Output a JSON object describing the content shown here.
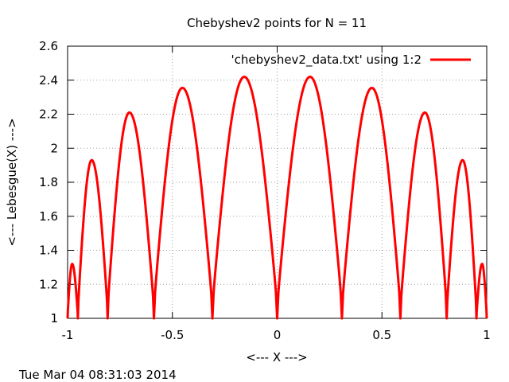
{
  "chart_data": {
    "type": "line",
    "title": "Chebyshev2 points for N = 11",
    "xlabel": "<--- X --->",
    "ylabel": "<--- Lebesgue(X) --->",
    "xlim": [
      -1,
      1
    ],
    "ylim": [
      1,
      2.6
    ],
    "xticks": [
      -1,
      -0.5,
      0,
      0.5,
      1
    ],
    "xtick_labels": [
      "-1",
      "-0.5",
      "0",
      "0.5",
      "1"
    ],
    "yticks": [
      1,
      1.2,
      1.4,
      1.6,
      1.8,
      2,
      2.2,
      2.4,
      2.6
    ],
    "ytick_labels": [
      "1",
      "1.2",
      "1.4",
      "1.6",
      "1.8",
      "2",
      "2.2",
      "2.4",
      "2.6"
    ],
    "grid": true,
    "legend_position": "top-right",
    "series": [
      {
        "name": "'chebyshev2_data.txt' using 1:2",
        "color": "#ff0000",
        "nodes": [
          -1,
          -0.951,
          -0.809,
          -0.588,
          -0.309,
          0,
          0.309,
          0.588,
          0.809,
          0.951,
          1
        ],
        "peaks": [
          {
            "x": -0.978,
            "y": 1.32
          },
          {
            "x": -0.885,
            "y": 1.93
          },
          {
            "x": -0.705,
            "y": 2.21
          },
          {
            "x": -0.452,
            "y": 2.355
          },
          {
            "x": -0.157,
            "y": 2.42
          },
          {
            "x": 0.157,
            "y": 2.42
          },
          {
            "x": 0.452,
            "y": 2.355
          },
          {
            "x": 0.705,
            "y": 2.21
          },
          {
            "x": 0.885,
            "y": 1.93
          },
          {
            "x": 0.978,
            "y": 1.32
          }
        ]
      }
    ],
    "footer": "Tue Mar 04 08:31:03 2014"
  }
}
